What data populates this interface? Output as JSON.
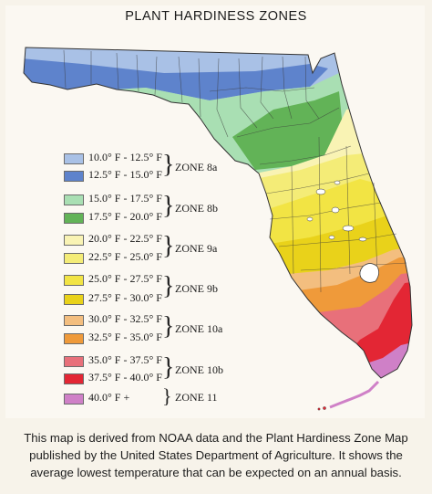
{
  "title": "PLANT HARDINESS ZONES",
  "caption": "This map is derived from NOAA data and the Plant Hardiness Zone Map published by the United States Department of Agriculture. It shows the average lowest temperature that can be expected on an annual basis.",
  "legend": {
    "ranges": [
      {
        "label": "10.0° F - 12.5° F",
        "color": "#a9c1e6"
      },
      {
        "label": "12.5° F - 15.0° F",
        "color": "#5e83cc"
      },
      {
        "label": "15.0° F - 17.5° F",
        "color": "#a9dfb3"
      },
      {
        "label": "17.5° F - 20.0° F",
        "color": "#62b357"
      },
      {
        "label": "20.0° F - 22.5° F",
        "color": "#f9f3b4"
      },
      {
        "label": "22.5° F - 25.0° F",
        "color": "#f4ec77"
      },
      {
        "label": "25.0° F - 27.5° F",
        "color": "#f2e444"
      },
      {
        "label": "27.5° F - 30.0° F",
        "color": "#e9d21a"
      },
      {
        "label": "30.0° F - 32.5° F",
        "color": "#f3be7f"
      },
      {
        "label": "32.5° F - 35.0° F",
        "color": "#ef9a3a"
      },
      {
        "label": "35.0° F - 37.5° F",
        "color": "#e8707a"
      },
      {
        "label": "37.5° F - 40.0° F",
        "color": "#e32634"
      },
      {
        "label": "40.0° F +",
        "color": "#cf80c7"
      }
    ],
    "zones": [
      {
        "label": "ZONE 8a"
      },
      {
        "label": "ZONE 8b"
      },
      {
        "label": "ZONE 9a"
      },
      {
        "label": "ZONE 9b"
      },
      {
        "label": "ZONE 10a"
      },
      {
        "label": "ZONE 10b"
      },
      {
        "label": "ZONE 11"
      }
    ]
  }
}
